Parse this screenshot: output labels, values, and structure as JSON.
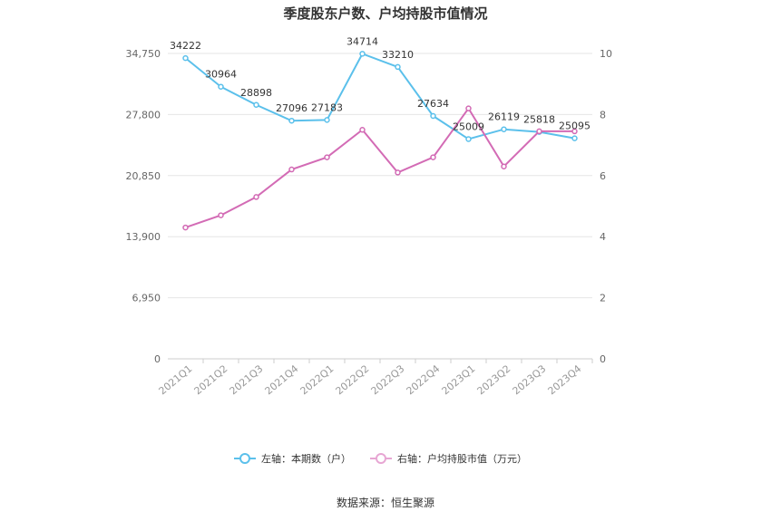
{
  "chart_data": {
    "type": "line",
    "title": "季度股东户数、户均持股市值情况",
    "categories": [
      "2021Q1",
      "2021Q2",
      "2021Q3",
      "2021Q4",
      "2022Q1",
      "2022Q2",
      "2022Q3",
      "2022Q4",
      "2023Q1",
      "2023Q2",
      "2023Q3",
      "2023Q4"
    ],
    "left_axis": {
      "min": 0,
      "max": 34750,
      "ticks": [
        0,
        6950,
        13900,
        20850,
        27800,
        34750
      ],
      "tick_labels": [
        "0",
        "6,950",
        "13,900",
        "20,850",
        "27,800",
        "34,750"
      ]
    },
    "right_axis": {
      "min": 0,
      "max": 10,
      "ticks": [
        0,
        2,
        4,
        6,
        8,
        10
      ],
      "tick_labels": [
        "0",
        "2",
        "4",
        "6",
        "8",
        "10"
      ]
    },
    "series": [
      {
        "name": "左轴：本期数（户）",
        "axis": "left",
        "color": "#5bc0eb",
        "values": [
          34222,
          30964,
          28898,
          27096,
          27183,
          34714,
          33210,
          27634,
          25009,
          26119,
          25818,
          25095
        ],
        "labels": [
          "34222",
          "30964",
          "28898",
          "27096",
          "27183",
          "34714",
          "33210",
          "27634",
          "25009",
          "26119",
          "25818",
          "25095"
        ]
      },
      {
        "name": "右轴：户均持股市值（万元）",
        "axis": "right",
        "color": "#d36bb5",
        "values": [
          4.3,
          4.7,
          5.3,
          6.2,
          6.6,
          7.5,
          6.1,
          6.6,
          8.2,
          6.3,
          7.45,
          7.45
        ]
      }
    ],
    "grid": true,
    "legend_position": "bottom"
  },
  "footer": {
    "source": "数据来源：恒生聚源"
  }
}
